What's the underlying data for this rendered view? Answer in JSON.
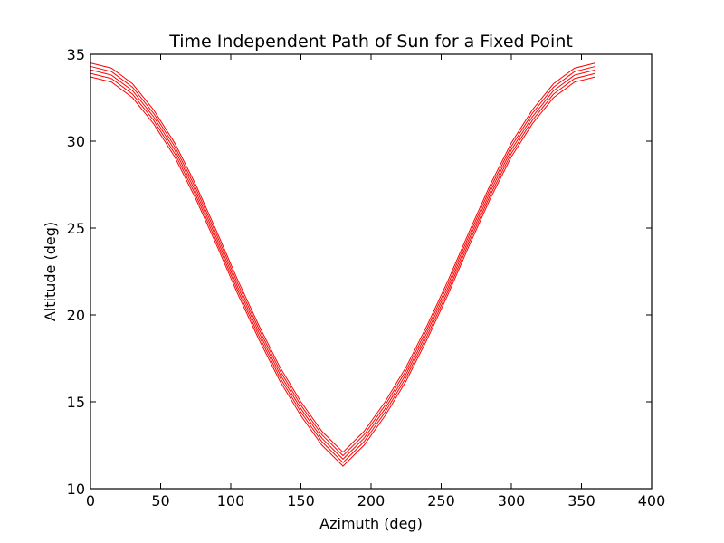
{
  "chart_data": {
    "type": "line",
    "title": "Time Independent Path of Sun for a Fixed Point",
    "xlabel": "Azimuth (deg)",
    "ylabel": "Altitude (deg)",
    "xlim": [
      0,
      400
    ],
    "ylim": [
      10,
      35
    ],
    "xticks": [
      0,
      50,
      100,
      150,
      200,
      250,
      300,
      350,
      400
    ],
    "yticks": [
      10,
      15,
      20,
      25,
      30,
      35
    ],
    "grid": false,
    "line_color": "#ff0000",
    "series": [
      {
        "x": [
          0,
          15,
          30,
          45,
          60,
          75,
          90,
          105,
          120,
          135,
          150,
          165,
          180,
          195,
          210,
          225,
          240,
          255,
          270,
          285,
          300,
          315,
          330,
          345,
          360
        ],
        "values": [
          33.7,
          33.4,
          32.5,
          31.0,
          29.1,
          26.7,
          24.0,
          21.2,
          18.6,
          16.2,
          14.2,
          12.5,
          11.3,
          12.5,
          14.2,
          16.2,
          18.6,
          21.2,
          24.0,
          26.7,
          29.1,
          31.0,
          32.5,
          33.4,
          33.7
        ]
      },
      {
        "x": [
          0,
          15,
          30,
          45,
          60,
          75,
          90,
          105,
          120,
          135,
          150,
          165,
          180,
          195,
          210,
          225,
          240,
          255,
          270,
          285,
          300,
          315,
          330,
          345,
          360
        ],
        "values": [
          33.9,
          33.6,
          32.7,
          31.2,
          29.3,
          26.9,
          24.2,
          21.4,
          18.8,
          16.4,
          14.4,
          12.7,
          11.5,
          12.7,
          14.4,
          16.4,
          18.8,
          21.4,
          24.2,
          26.9,
          29.3,
          31.2,
          32.7,
          33.6,
          33.9
        ]
      },
      {
        "x": [
          0,
          15,
          30,
          45,
          60,
          75,
          90,
          105,
          120,
          135,
          150,
          165,
          180,
          195,
          210,
          225,
          240,
          255,
          270,
          285,
          300,
          315,
          330,
          345,
          360
        ],
        "values": [
          34.1,
          33.8,
          32.9,
          31.4,
          29.5,
          27.1,
          24.4,
          21.6,
          19.0,
          16.6,
          14.6,
          12.9,
          11.7,
          12.9,
          14.6,
          16.6,
          19.0,
          21.6,
          24.4,
          27.1,
          29.5,
          31.4,
          32.9,
          33.8,
          34.1
        ]
      },
      {
        "x": [
          0,
          15,
          30,
          45,
          60,
          75,
          90,
          105,
          120,
          135,
          150,
          165,
          180,
          195,
          210,
          225,
          240,
          255,
          270,
          285,
          300,
          315,
          330,
          345,
          360
        ],
        "values": [
          34.3,
          34.0,
          33.1,
          31.6,
          29.7,
          27.3,
          24.6,
          21.8,
          19.2,
          16.8,
          14.8,
          13.1,
          11.9,
          13.1,
          14.8,
          16.8,
          19.2,
          21.8,
          24.6,
          27.3,
          29.7,
          31.6,
          33.1,
          34.0,
          34.3
        ]
      },
      {
        "x": [
          0,
          15,
          30,
          45,
          60,
          75,
          90,
          105,
          120,
          135,
          150,
          165,
          180,
          195,
          210,
          225,
          240,
          255,
          270,
          285,
          300,
          315,
          330,
          345,
          360
        ],
        "values": [
          34.5,
          34.2,
          33.3,
          31.8,
          29.9,
          27.5,
          24.8,
          22.0,
          19.4,
          17.0,
          15.0,
          13.3,
          12.1,
          13.3,
          15.0,
          17.0,
          19.4,
          22.0,
          24.8,
          27.5,
          29.9,
          31.8,
          33.3,
          34.2,
          34.5
        ]
      }
    ]
  }
}
